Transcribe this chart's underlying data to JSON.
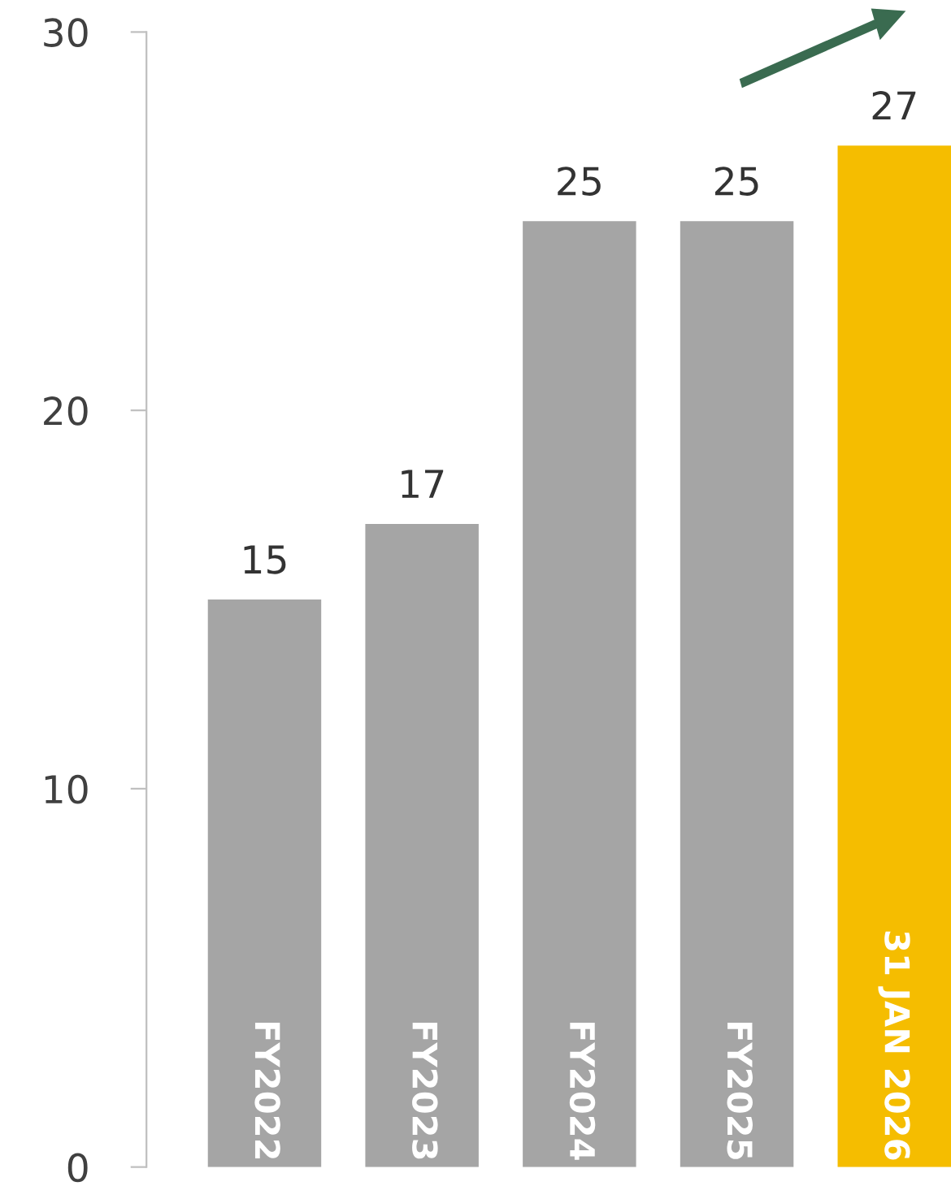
{
  "chart_data": {
    "type": "bar",
    "categories": [
      "FY2022",
      "FY2023",
      "FY2024",
      "FY2025",
      "31 JAN 2026"
    ],
    "values": [
      15,
      17,
      25,
      25,
      27
    ],
    "colors": [
      "#a5a5a5",
      "#a5a5a5",
      "#a5a5a5",
      "#a5a5a5",
      "#f5bd00"
    ],
    "ylim": [
      0,
      30
    ],
    "yticks": [
      0,
      10,
      20,
      30
    ],
    "data_labels": true,
    "grid": false,
    "legend": false
  }
}
